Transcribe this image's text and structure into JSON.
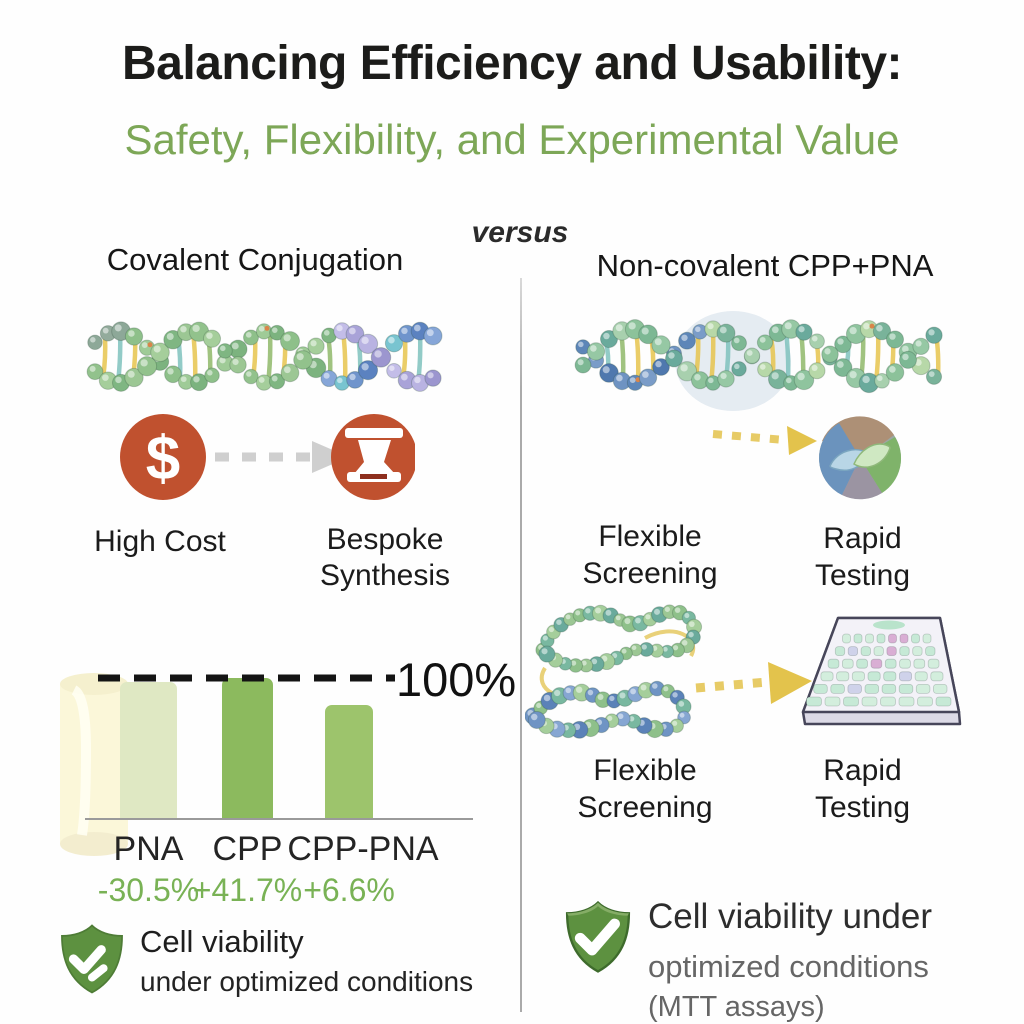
{
  "header": {
    "title": "Balancing Efficiency and Usability:",
    "subtitle": "Safety, Flexibility, and Experimental Value",
    "versus": "versus"
  },
  "left_column": {
    "heading": "Covalent Conjugation",
    "cost_icon": "dollar-sign-icon",
    "cost_label": "High Cost",
    "synthesis_icon": "scroll-icon",
    "synthesis_label_line1": "Bespoke",
    "synthesis_label_line2": "Synthesis",
    "illustration": "dna-double-helix",
    "viability_note": {
      "icon": "shield-check-icon",
      "line1": "Cell viability",
      "line2": "under optimized conditions"
    }
  },
  "right_column": {
    "heading": "Non-covalent CPP+PNA",
    "illustrations": [
      "dna-double-helix",
      "handshake-circle-icon",
      "dna-tangles",
      "microplate-icon"
    ],
    "feature_rows": [
      {
        "items": [
          {
            "line1": "Flexible",
            "line2": "Screening"
          },
          {
            "line1": "Rapid",
            "line2": "Testing"
          }
        ]
      },
      {
        "items": [
          {
            "line1": "Flexible",
            "line2": "Screening"
          },
          {
            "line1": "Rapid",
            "line2": "Testing"
          }
        ]
      }
    ],
    "viability_note": {
      "icon": "shield-check-icon",
      "line1": "Cell viability under",
      "line2": "optimized conditions",
      "line3": "(MTT assays)"
    }
  },
  "chart_data": {
    "type": "bar",
    "title": "Cell viability under optimized conditions",
    "categories": [
      "PNA",
      "CPP",
      "CPP-PNA"
    ],
    "values": [
      97,
      100,
      81
    ],
    "delta_labels": [
      "-30.5%",
      "+41.7%",
      "+6.6%"
    ],
    "reference_line": {
      "value": 100,
      "label": "100%"
    },
    "ylim": [
      0,
      100
    ],
    "bar_colors": [
      "#dfe8c3",
      "#8cba5e",
      "#9dc46c"
    ],
    "grid": false,
    "legend": false
  },
  "colors": {
    "title_text": "#1c1c1a",
    "accent_green": "#7da757",
    "delta_green": "#79b255",
    "icon_orange": "#c0512f",
    "shield_green": "#5d9140",
    "arrow_gray": "#cfcfcf",
    "arrow_yellow": "#e3c34c",
    "divider_gray": "#b3b3b3"
  }
}
